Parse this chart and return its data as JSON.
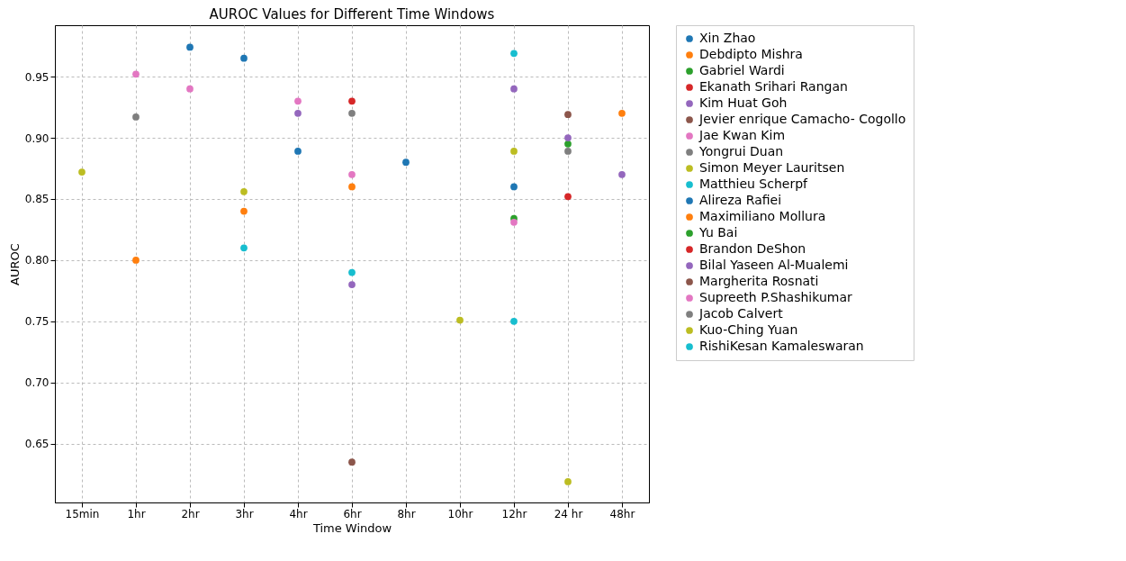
{
  "chart_data": {
    "type": "scatter",
    "title": "AUROC Values for Different Time Windows",
    "xlabel": "Time Window",
    "ylabel": "AUROC",
    "categories": [
      "15min",
      "1hr",
      "2hr",
      "3hr",
      "4hr",
      "6hr",
      "8hr",
      "10hr",
      "12hr",
      "24 hr",
      "48hr"
    ],
    "ylim": [
      0.602,
      0.992
    ],
    "yticks": [
      0.65,
      {
        "value": 0.7,
        "label": "0.70"
      },
      0.75,
      {
        "value": 0.8,
        "label": "0.80"
      },
      0.85,
      {
        "value": 0.9,
        "label": "0.90"
      },
      0.95
    ],
    "grid": true,
    "legend": "right",
    "marker": "circle",
    "series": [
      {
        "name": "Xin Zhao",
        "color": "#1f77b4",
        "x": [
          "2hr",
          "3hr",
          "4hr"
        ],
        "values": [
          0.974,
          0.965,
          0.889
        ]
      },
      {
        "name": "Debdipto Mishra",
        "color": "#ff7f0e",
        "x": [
          "1hr",
          "3hr"
        ],
        "values": [
          0.8,
          0.84
        ]
      },
      {
        "name": "Gabriel Wardi",
        "color": "#2ca02c",
        "x": [
          "24 hr"
        ],
        "values": [
          0.895
        ]
      },
      {
        "name": "Ekanath Srihari Rangan",
        "color": "#d62728",
        "x": [
          "24 hr"
        ],
        "values": [
          0.852
        ]
      },
      {
        "name": "Kim Huat Goh",
        "color": "#9467bd",
        "x": [
          "4hr",
          "6hr"
        ],
        "values": [
          0.92,
          0.78
        ]
      },
      {
        "name": "Jevier enrique Camacho- Cogollo",
        "color": "#8c564b",
        "x": [
          "24 hr"
        ],
        "values": [
          0.919
        ]
      },
      {
        "name": "Jae Kwan Kim",
        "color": "#e377c2",
        "x": [
          "1hr",
          "2hr"
        ],
        "values": [
          0.952,
          0.94
        ]
      },
      {
        "name": "Yongrui Duan",
        "color": "#7f7f7f",
        "x": [
          "1hr"
        ],
        "values": [
          0.917
        ]
      },
      {
        "name": "Simon Meyer Lauritsen",
        "color": "#bcbd22",
        "x": [
          "15min",
          "3hr"
        ],
        "values": [
          0.872,
          0.856
        ]
      },
      {
        "name": "Matthieu Scherpf",
        "color": "#17becf",
        "x": [
          "3hr",
          "6hr"
        ],
        "values": [
          0.81,
          0.79
        ]
      },
      {
        "name": "Alireza Rafiei",
        "color": "#1f77b4",
        "x": [
          "8hr",
          "12hr"
        ],
        "values": [
          0.88,
          0.86
        ]
      },
      {
        "name": "Maximiliano Mollura",
        "color": "#ff7f0e",
        "x": [
          "6hr",
          "48hr"
        ],
        "values": [
          0.86,
          0.92
        ]
      },
      {
        "name": "Yu Bai",
        "color": "#2ca02c",
        "x": [
          "12hr"
        ],
        "values": [
          0.834
        ]
      },
      {
        "name": "Brandon DeShon",
        "color": "#d62728",
        "x": [
          "6hr"
        ],
        "values": [
          0.93
        ]
      },
      {
        "name": "Bilal Yaseen Al-Mualemi",
        "color": "#9467bd",
        "x": [
          "12hr",
          "24 hr",
          "48hr"
        ],
        "values": [
          0.94,
          0.9,
          0.87
        ]
      },
      {
        "name": "Margherita Rosnati",
        "color": "#8c564b",
        "x": [
          "6hr"
        ],
        "values": [
          0.635
        ]
      },
      {
        "name": "Supreeth P.Shashikumar",
        "color": "#e377c2",
        "x": [
          "4hr",
          "6hr",
          "12hr"
        ],
        "values": [
          0.93,
          0.87,
          0.831
        ]
      },
      {
        "name": "Jacob Calvert",
        "color": "#7f7f7f",
        "x": [
          "6hr",
          "24 hr"
        ],
        "values": [
          0.92,
          0.889
        ]
      },
      {
        "name": "Kuo-Ching Yuan",
        "color": "#bcbd22",
        "x": [
          "10hr",
          "12hr",
          "24 hr"
        ],
        "values": [
          0.751,
          0.889,
          0.619
        ]
      },
      {
        "name": "RishiKesan Kamaleswaran",
        "color": "#17becf",
        "x": [
          "12hr",
          "12hr"
        ],
        "values": [
          0.969,
          0.75
        ]
      }
    ]
  }
}
